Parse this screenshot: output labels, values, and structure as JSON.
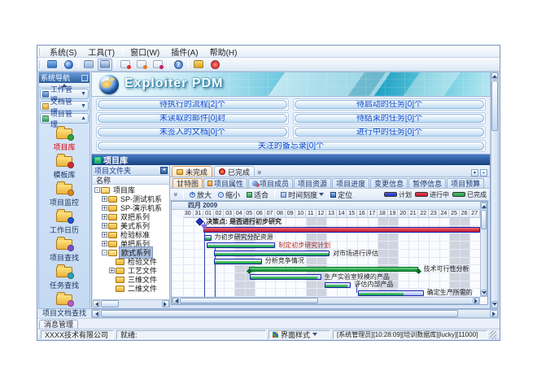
{
  "menu": {
    "items": [
      "系统(S)",
      "工具(T)",
      "窗口(W)",
      "插件(A)",
      "帮助(H)"
    ]
  },
  "toolbar": {
    "icons": [
      "monitor-icon",
      "globe-icon",
      "folder-icon",
      "save-icon",
      "mail-new-icon",
      "mail-check-icon",
      "mail-delete-icon",
      "help-icon",
      "lock-icon",
      "exit-icon"
    ]
  },
  "sidebar": {
    "title": "系统导航",
    "groups": [
      {
        "label": "工作管理",
        "icon": "work-management-icon",
        "expanded": false
      },
      {
        "label": "文档管理",
        "icon": "document-management-icon",
        "expanded": false
      },
      {
        "label": "项目管理",
        "icon": "project-management-icon",
        "expanded": true
      }
    ],
    "items": [
      {
        "label": "项目库",
        "icon": "project-library-icon",
        "selected": true
      },
      {
        "label": "模板库",
        "icon": "template-library-icon",
        "selected": false
      },
      {
        "label": "项目监控",
        "icon": "project-monitor-icon",
        "selected": false
      },
      {
        "label": "工作日历",
        "icon": "work-calendar-icon",
        "selected": false
      },
      {
        "label": "项目查找",
        "icon": "project-search-icon",
        "selected": false
      },
      {
        "label": "任务查找",
        "icon": "task-search-icon",
        "selected": false
      },
      {
        "label": "项目文档查找",
        "icon": "project-doc-search-icon",
        "selected": false
      }
    ]
  },
  "banner": {
    "title": "Exploiter PDM"
  },
  "dashboard": {
    "buttons": [
      "待执行的流程[2]个",
      "待启动的任务[0]个",
      "未读取的邮件[0]封",
      "待结束的任务[0]个",
      "未签入的文档[0]个",
      "进行中的任务[0]个",
      "关注的备忘录[0]个"
    ]
  },
  "project_panel": {
    "title": "项目库",
    "folder_panel": {
      "title": "项目文件夹",
      "column_header": "名称"
    },
    "tree": [
      {
        "label": "项目库",
        "level": 0,
        "expander": "minus",
        "open": true,
        "selected": false
      },
      {
        "label": "SP-测试机系",
        "level": 1,
        "expander": "plus",
        "open": false,
        "selected": false
      },
      {
        "label": "SP-演示机系",
        "level": 1,
        "expander": "plus",
        "open": false,
        "selected": false
      },
      {
        "label": "双把系列",
        "level": 1,
        "expander": "plus",
        "open": false,
        "selected": false
      },
      {
        "label": "美式系列",
        "level": 1,
        "expander": "plus",
        "open": false,
        "selected": false
      },
      {
        "label": "检验标准",
        "level": 1,
        "expander": "plus",
        "open": false,
        "selected": false
      },
      {
        "label": "单把系列",
        "level": 1,
        "expander": "plus",
        "open": false,
        "selected": false
      },
      {
        "label": "欧式系列",
        "level": 1,
        "expander": "minus",
        "open": true,
        "selected": true
      },
      {
        "label": "检验文件",
        "level": 2,
        "expander": "none",
        "open": false,
        "selected": false
      },
      {
        "label": "工艺文件",
        "level": 2,
        "expander": "plus",
        "open": false,
        "selected": false
      },
      {
        "label": "三维文件",
        "level": 2,
        "expander": "none",
        "open": false,
        "selected": false
      },
      {
        "label": "二维文件",
        "level": 2,
        "expander": "none",
        "open": false,
        "selected": false
      }
    ],
    "view_tabs": [
      {
        "label": "未完成",
        "icon": "unfinished-icon",
        "selected": true
      },
      {
        "label": "已完成",
        "icon": "finished-icon",
        "selected": false
      }
    ],
    "detail_tabs": [
      {
        "label": "甘特图",
        "selected": true
      },
      {
        "label": "项目属性",
        "icon": "project-properties-icon",
        "selected": false
      },
      {
        "label": "项目成员",
        "icon": "project-members-icon",
        "selected": false
      },
      {
        "label": "项目资源",
        "selected": false
      },
      {
        "label": "项目进度",
        "selected": false
      },
      {
        "label": "变更信息",
        "selected": false
      },
      {
        "label": "暂停信息",
        "selected": false
      },
      {
        "label": "项目预算",
        "selected": false
      }
    ],
    "gantt_toolbar": {
      "buttons": [
        {
          "label": "放大",
          "icon": "zoom-in-icon"
        },
        {
          "label": "缩小",
          "icon": "zoom-out-icon"
        },
        {
          "label": "适合",
          "icon": "fit-icon"
        },
        {
          "label": "时间刻度",
          "icon": "time-scale-icon",
          "dropdown": true
        },
        {
          "label": "定位",
          "icon": "locate-icon"
        }
      ]
    },
    "legend": [
      {
        "label": "计划",
        "color": "#2a3cd0"
      },
      {
        "label": "进行中",
        "color": "#d02535"
      },
      {
        "label": "已完成",
        "color": "#2fae4e"
      }
    ],
    "gantt": {
      "month_header": "四月 2009",
      "days": [
        "30",
        "31",
        "01",
        "02",
        "03",
        "04",
        "05",
        "06",
        "07",
        "08",
        "09",
        "10",
        "11",
        "12",
        "13",
        "14",
        "15",
        "16",
        "17",
        "18",
        "19",
        "20",
        "21",
        "22",
        "23",
        "24",
        "25",
        "26",
        "27"
      ],
      "weekend_indexes": [
        5,
        6,
        12,
        13,
        19,
        20,
        26,
        27
      ],
      "tasks": [
        {
          "row": 0,
          "type": "milestone",
          "day": 1.6,
          "label": "决策点: 是否进行初步研究"
        },
        {
          "row": 1,
          "type": "inprogress",
          "start": 2,
          "end": 29,
          "marker_day": 2.1
        },
        {
          "row": 2,
          "type": "task",
          "start": 2.05,
          "end": 2.75,
          "progress": 1,
          "label": "为初步研究分配资源"
        },
        {
          "row": 3,
          "type": "task",
          "start": 2.3,
          "end": 9,
          "progress": 1,
          "label": "制定初步研究计划",
          "label_color": "#b03028"
        },
        {
          "row": 4,
          "type": "task",
          "start": 3,
          "end": 14.3,
          "progress": 1,
          "label": "对市场进行评估"
        },
        {
          "row": 5,
          "type": "task",
          "start": 3,
          "end": 7.7,
          "progress": 1,
          "label": "分析竞争情况"
        },
        {
          "row": 6,
          "type": "summary",
          "start": 6.4,
          "end": 23,
          "label": "技术可行性分析"
        },
        {
          "row": 7,
          "type": "task",
          "start": 6.5,
          "end": 13.5,
          "progress": 0.95,
          "label": "生产实验室规模的产品"
        },
        {
          "row": 8,
          "type": "task",
          "start": 13.8,
          "end": 16.4,
          "progress": 0.9,
          "label": "评估内部产品"
        },
        {
          "row": 9,
          "type": "task",
          "start": 17.1,
          "end": 23.5,
          "progress": 0.7,
          "label": "确定生产所需的"
        }
      ],
      "connectors": [
        {
          "day": 2.05,
          "from_row": 0.5,
          "to_row": 10
        },
        {
          "day": 3.1,
          "from_row": 3.5,
          "to_row": 10
        },
        {
          "day": 16.95,
          "from_row": 8.5,
          "to_row": 9.5
        }
      ]
    }
  },
  "message_panel": {
    "tab": "消息管理"
  },
  "statusbar": {
    "company": "XXXX技术有限公司",
    "ready": "就绪:",
    "style_label": "界面样式",
    "session": "[系统管理员][10:28:09][培训数据库][lucky][11000]"
  }
}
